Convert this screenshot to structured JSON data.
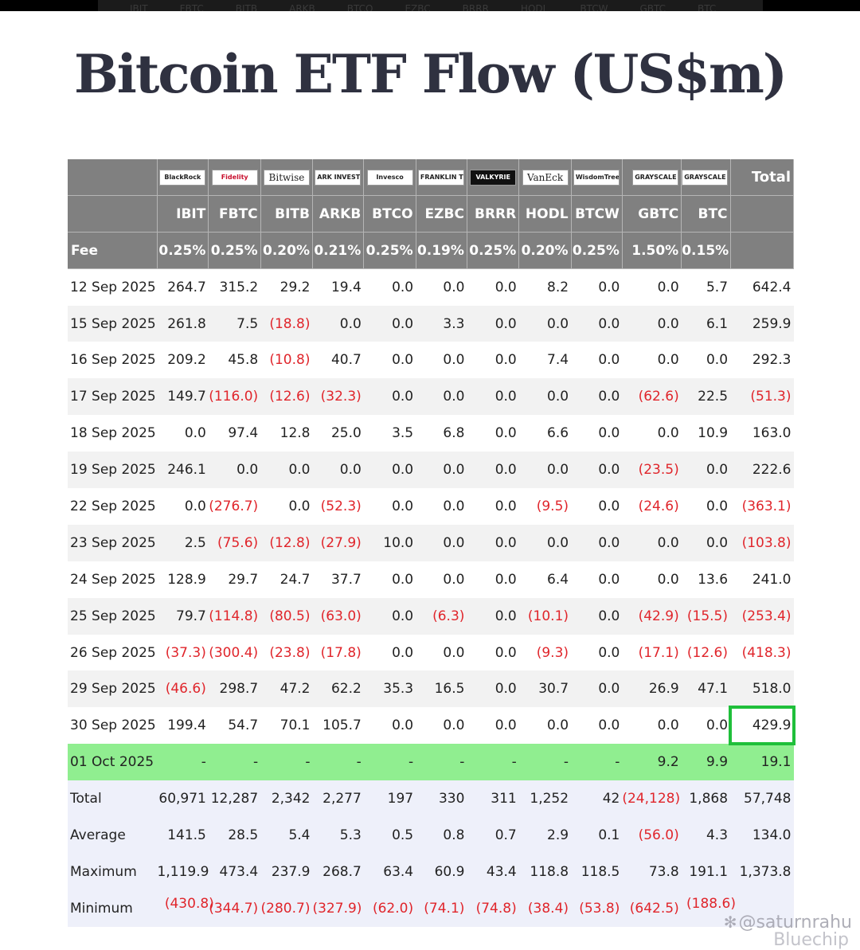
{
  "title": "Bitcoin ETF Flow (US$m)",
  "topbar_tickers": [
    "IBIT",
    "FBTC",
    "BITB",
    "ARKB",
    "BTCO",
    "EZBC",
    "BRRR",
    "HODL",
    "BTCW",
    "GBTC",
    "BTC"
  ],
  "issuers": [
    "BlackRock",
    "Fidelity",
    "Bitwise",
    "ARK INVEST",
    "Invesco",
    "FRANKLIN TEMPLETON",
    "VALKYRIE",
    "VanEck",
    "WisdomTree",
    "GRAYSCALE",
    "GRAYSCALE"
  ],
  "total_label": "Total",
  "fee_label": "Fee",
  "tickers": [
    "IBIT",
    "FBTC",
    "BITB",
    "ARKB",
    "BTCO",
    "EZBC",
    "BRRR",
    "HODL",
    "BTCW",
    "GBTC",
    "BTC"
  ],
  "fees": [
    "0.25%",
    "0.25%",
    "0.20%",
    "0.21%",
    "0.25%",
    "0.19%",
    "0.25%",
    "0.20%",
    "0.25%",
    "1.50%",
    "0.15%"
  ],
  "rows": [
    {
      "date": "12 Sep 2025",
      "values": [
        "264.7",
        "315.2",
        "29.2",
        "19.4",
        "0.0",
        "0.0",
        "0.0",
        "8.2",
        "0.0",
        "0.0",
        "5.7"
      ],
      "total": "642.4"
    },
    {
      "date": "15 Sep 2025",
      "values": [
        "261.8",
        "7.5",
        "(18.8)",
        "0.0",
        "0.0",
        "3.3",
        "0.0",
        "0.0",
        "0.0",
        "0.0",
        "6.1"
      ],
      "total": "259.9"
    },
    {
      "date": "16 Sep 2025",
      "values": [
        "209.2",
        "45.8",
        "(10.8)",
        "40.7",
        "0.0",
        "0.0",
        "0.0",
        "7.4",
        "0.0",
        "0.0",
        "0.0"
      ],
      "total": "292.3"
    },
    {
      "date": "17 Sep 2025",
      "values": [
        "149.7",
        "(116.0)",
        "(12.6)",
        "(32.3)",
        "0.0",
        "0.0",
        "0.0",
        "0.0",
        "0.0",
        "(62.6)",
        "22.5"
      ],
      "total": "(51.3)"
    },
    {
      "date": "18 Sep 2025",
      "values": [
        "0.0",
        "97.4",
        "12.8",
        "25.0",
        "3.5",
        "6.8",
        "0.0",
        "6.6",
        "0.0",
        "0.0",
        "10.9"
      ],
      "total": "163.0"
    },
    {
      "date": "19 Sep 2025",
      "values": [
        "246.1",
        "0.0",
        "0.0",
        "0.0",
        "0.0",
        "0.0",
        "0.0",
        "0.0",
        "0.0",
        "(23.5)",
        "0.0"
      ],
      "total": "222.6"
    },
    {
      "date": "22 Sep 2025",
      "values": [
        "0.0",
        "(276.7)",
        "0.0",
        "(52.3)",
        "0.0",
        "0.0",
        "0.0",
        "(9.5)",
        "0.0",
        "(24.6)",
        "0.0"
      ],
      "total": "(363.1)"
    },
    {
      "date": "23 Sep 2025",
      "values": [
        "2.5",
        "(75.6)",
        "(12.8)",
        "(27.9)",
        "10.0",
        "0.0",
        "0.0",
        "0.0",
        "0.0",
        "0.0",
        "0.0"
      ],
      "total": "(103.8)"
    },
    {
      "date": "24 Sep 2025",
      "values": [
        "128.9",
        "29.7",
        "24.7",
        "37.7",
        "0.0",
        "0.0",
        "0.0",
        "6.4",
        "0.0",
        "0.0",
        "13.6"
      ],
      "total": "241.0"
    },
    {
      "date": "25 Sep 2025",
      "values": [
        "79.7",
        "(114.8)",
        "(80.5)",
        "(63.0)",
        "0.0",
        "(6.3)",
        "0.0",
        "(10.1)",
        "0.0",
        "(42.9)",
        "(15.5)"
      ],
      "total": "(253.4)"
    },
    {
      "date": "26 Sep 2025",
      "values": [
        "(37.3)",
        "(300.4)",
        "(23.8)",
        "(17.8)",
        "0.0",
        "0.0",
        "0.0",
        "(9.3)",
        "0.0",
        "(17.1)",
        "(12.6)"
      ],
      "total": "(418.3)"
    },
    {
      "date": "29 Sep 2025",
      "values": [
        "(46.6)",
        "298.7",
        "47.2",
        "62.2",
        "35.3",
        "16.5",
        "0.0",
        "30.7",
        "0.0",
        "26.9",
        "47.1"
      ],
      "total": "518.0"
    },
    {
      "date": "30 Sep 2025",
      "values": [
        "199.4",
        "54.7",
        "70.1",
        "105.7",
        "0.0",
        "0.0",
        "0.0",
        "0.0",
        "0.0",
        "0.0",
        "0.0"
      ],
      "total": "429.9"
    },
    {
      "date": "01 Oct 2025",
      "values": [
        "-",
        "-",
        "-",
        "-",
        "-",
        "-",
        "-",
        "-",
        "-",
        "9.2",
        "9.9"
      ],
      "total": "19.1"
    }
  ],
  "summary": [
    {
      "label": "Total",
      "values": [
        "60,971",
        "12,287",
        "2,342",
        "2,277",
        "197",
        "330",
        "311",
        "1,252",
        "42",
        "(24,128)",
        "1,868"
      ],
      "total": "57,748"
    },
    {
      "label": "Average",
      "values": [
        "141.5",
        "28.5",
        "5.4",
        "5.3",
        "0.5",
        "0.8",
        "0.7",
        "2.9",
        "0.1",
        "(56.0)",
        "4.3"
      ],
      "total": "134.0"
    },
    {
      "label": "Maximum",
      "values": [
        "1,119.9",
        "473.4",
        "237.9",
        "268.7",
        "63.4",
        "60.9",
        "43.4",
        "118.8",
        "118.5",
        "73.8",
        "191.1"
      ],
      "total": "1,373.8"
    },
    {
      "label": "Minimum",
      "values": [
        "(430.8)",
        "(344.7)",
        "(280.7)",
        "(327.9)",
        "(62.0)",
        "(74.1)",
        "(74.8)",
        "(38.4)",
        "(53.8)",
        "(642.5)",
        "(188.6)"
      ],
      "total": ""
    }
  ],
  "watermark": "@saturnrahu",
  "watermark2": "Bluechip",
  "colors": {
    "header_bg": "#808080",
    "negative": "#e0252b",
    "highlight_row": "#90ee90",
    "highlight_box": "#1fbf3a",
    "summary_bg": "#eef0fa"
  }
}
